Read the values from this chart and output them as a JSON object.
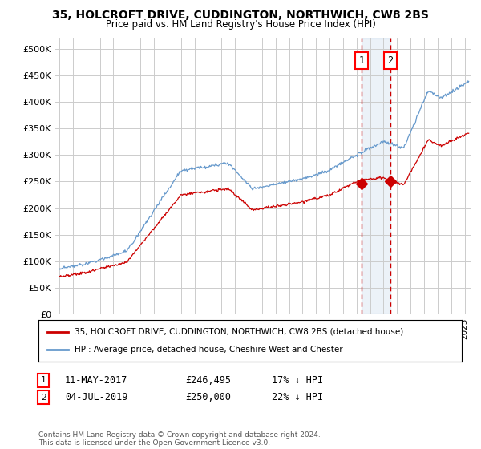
{
  "title": "35, HOLCROFT DRIVE, CUDDINGTON, NORTHWICH, CW8 2BS",
  "subtitle": "Price paid vs. HM Land Registry's House Price Index (HPI)",
  "ylabel_ticks": [
    "£0",
    "£50K",
    "£100K",
    "£150K",
    "£200K",
    "£250K",
    "£300K",
    "£350K",
    "£400K",
    "£450K",
    "£500K"
  ],
  "ytick_vals": [
    0,
    50000,
    100000,
    150000,
    200000,
    250000,
    300000,
    350000,
    400000,
    450000,
    500000
  ],
  "ylim": [
    0,
    520000
  ],
  "xlim_start": 1994.7,
  "xlim_end": 2025.5,
  "marker1_x": 2017.36,
  "marker1_y": 246495,
  "marker2_x": 2019.5,
  "marker2_y": 250000,
  "vline1_x": 2017.36,
  "vline2_x": 2019.5,
  "shade_alpha": 0.12,
  "legend_label_red": "35, HOLCROFT DRIVE, CUDDINGTON, NORTHWICH, CW8 2BS (detached house)",
  "legend_label_blue": "HPI: Average price, detached house, Cheshire West and Chester",
  "ann1_date": "11-MAY-2017",
  "ann1_price": "£246,495",
  "ann1_hpi": "17% ↓ HPI",
  "ann2_date": "04-JUL-2019",
  "ann2_price": "£250,000",
  "ann2_hpi": "22% ↓ HPI",
  "footer": "Contains HM Land Registry data © Crown copyright and database right 2024.\nThis data is licensed under the Open Government Licence v3.0.",
  "red_color": "#cc0000",
  "blue_color": "#6699cc",
  "bg_color": "#ffffff",
  "grid_color": "#cccccc"
}
